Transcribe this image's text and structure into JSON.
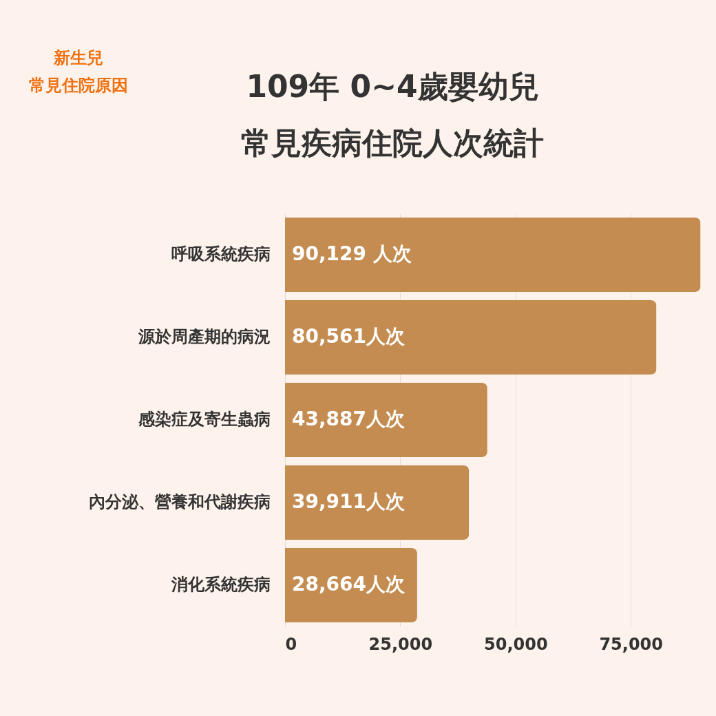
{
  "chart_data": {
    "type": "bar",
    "orientation": "horizontal",
    "title": "109年  0~4歲嬰幼兒",
    "subtitle": "常見疾病住院人次統計",
    "categories": [
      "呼吸系統疾病",
      "源於周產期的病況",
      "感染症及寄生蟲病",
      "內分泌、營養和代謝疾病",
      "消化系統疾病"
    ],
    "values": [
      90129,
      80561,
      43887,
      39911,
      28664
    ],
    "value_labels": [
      "90,129 人次",
      "80,561人次",
      "43,887人次",
      "39,911人次",
      "28,664人次"
    ],
    "color": "#c48c50",
    "xlim": [
      0,
      90500
    ],
    "xticks": [
      {
        "value": 0,
        "label": "0"
      },
      {
        "value": 25000,
        "label": "25,000"
      },
      {
        "value": 50000,
        "label": "50,000"
      },
      {
        "value": 75000,
        "label": "75,000"
      }
    ],
    "grid": "x",
    "annotations": [
      "新生兒",
      "常見住院原因"
    ]
  }
}
